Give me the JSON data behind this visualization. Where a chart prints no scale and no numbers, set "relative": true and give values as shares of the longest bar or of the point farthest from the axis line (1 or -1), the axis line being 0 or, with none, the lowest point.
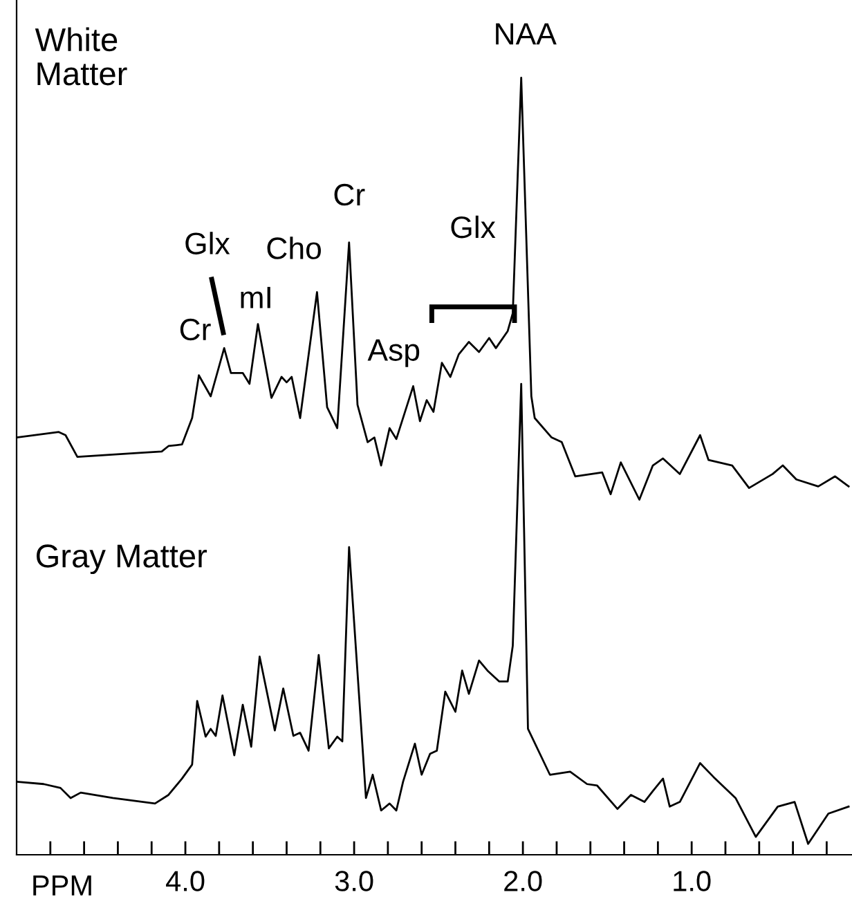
{
  "chart_data": {
    "type": "line",
    "relative": true,
    "xlabel": "PPM",
    "xlim": [
      5.0,
      0.05
    ],
    "xticks": [
      {
        "value": 4.8,
        "label": null
      },
      {
        "value": 4.6,
        "label": null
      },
      {
        "value": 4.4,
        "label": null
      },
      {
        "value": 4.2,
        "label": null
      },
      {
        "value": 4,
        "label": "4.0"
      },
      {
        "value": 3.8,
        "label": null
      },
      {
        "value": 3.6,
        "label": null
      },
      {
        "value": 3.4,
        "label": null
      },
      {
        "value": 3.2,
        "label": null
      },
      {
        "value": 3,
        "label": "3.0"
      },
      {
        "value": 2.8,
        "label": null
      },
      {
        "value": 2.6,
        "label": null
      },
      {
        "value": 2.4,
        "label": null
      },
      {
        "value": 2.2,
        "label": null
      },
      {
        "value": 2,
        "label": "2.0"
      },
      {
        "value": 1.8,
        "label": null
      },
      {
        "value": 1.6,
        "label": null
      },
      {
        "value": 1.4,
        "label": null
      },
      {
        "value": 1.2,
        "label": null
      },
      {
        "value": 1,
        "label": "1.0"
      },
      {
        "value": 0.8,
        "label": null
      },
      {
        "value": 0.6,
        "label": null
      },
      {
        "value": 0.4,
        "label": null
      },
      {
        "value": 0.2,
        "label": null
      }
    ],
    "tick_labels": "x",
    "grid": false,
    "marker": "none",
    "line_style": "solid",
    "series": [
      {
        "color": "#000000",
        "x": [
          5.0,
          4.75,
          4.71,
          4.64,
          4.29,
          4.14,
          4.1,
          4.02,
          3.96,
          3.92,
          3.85,
          3.77,
          3.73,
          3.66,
          3.62,
          3.57,
          3.49,
          3.43,
          3.4,
          3.37,
          3.32,
          3.22,
          3.16,
          3.1,
          3.03,
          2.98,
          2.92,
          2.88,
          2.84,
          2.79,
          2.75,
          2.65,
          2.61,
          2.57,
          2.53,
          2.48,
          2.43,
          2.38,
          2.32,
          2.26,
          2.2,
          2.16,
          2.09,
          2.06,
          2.01,
          1.95,
          1.93,
          1.83,
          1.77,
          1.69,
          1.53,
          1.48,
          1.42,
          1.31,
          1.23,
          1.17,
          1.07,
          0.95,
          0.9,
          0.76,
          0.66,
          0.52,
          0.46,
          0.38,
          0.25,
          0.15,
          0.07
        ],
        "values": [
          0.537,
          0.544,
          0.54,
          0.512,
          0.517,
          0.519,
          0.526,
          0.528,
          0.562,
          0.617,
          0.59,
          0.652,
          0.62,
          0.62,
          0.606,
          0.683,
          0.588,
          0.615,
          0.608,
          0.615,
          0.562,
          0.724,
          0.576,
          0.549,
          0.788,
          0.579,
          0.531,
          0.537,
          0.501,
          0.549,
          0.535,
          0.603,
          0.558,
          0.585,
          0.57,
          0.633,
          0.615,
          0.644,
          0.66,
          0.647,
          0.665,
          0.652,
          0.674,
          0.697,
          1,
          0.59,
          0.562,
          0.537,
          0.531,
          0.487,
          0.492,
          0.464,
          0.505,
          0.457,
          0.501,
          0.51,
          0.49,
          0.54,
          0.508,
          0.501,
          0.472,
          0.49,
          0.501,
          0.483,
          0.474,
          0.487,
          0.474
        ]
      },
      {
        "color": "#000000",
        "x": [
          5.0,
          4.84,
          4.74,
          4.68,
          4.62,
          4.43,
          4.18,
          4.1,
          4.02,
          3.96,
          3.93,
          3.88,
          3.85,
          3.82,
          3.78,
          3.71,
          3.66,
          3.61,
          3.56,
          3.47,
          3.42,
          3.36,
          3.32,
          3.27,
          3.21,
          3.15,
          3.1,
          3.07,
          3.03,
          2.93,
          2.89,
          2.84,
          2.79,
          2.75,
          2.71,
          2.64,
          2.6,
          2.55,
          2.51,
          2.46,
          2.4,
          2.36,
          2.32,
          2.26,
          2.21,
          2.14,
          2.09,
          2.06,
          2.01,
          1.97,
          1.84,
          1.72,
          1.62,
          1.56,
          1.44,
          1.36,
          1.28,
          1.23,
          1.17,
          1.13,
          1.07,
          0.95,
          0.87,
          0.74,
          0.62,
          0.49,
          0.39,
          0.31,
          0.19,
          0.07
        ],
        "values": [
          0.094,
          0.091,
          0.086,
          0.073,
          0.08,
          0.073,
          0.066,
          0.077,
          0.098,
          0.116,
          0.198,
          0.152,
          0.162,
          0.153,
          0.205,
          0.128,
          0.193,
          0.139,
          0.255,
          0.16,
          0.214,
          0.153,
          0.157,
          0.134,
          0.257,
          0.137,
          0.152,
          0.146,
          0.396,
          0.073,
          0.103,
          0.057,
          0.066,
          0.057,
          0.094,
          0.143,
          0.103,
          0.13,
          0.134,
          0.21,
          0.184,
          0.237,
          0.207,
          0.25,
          0.237,
          0.223,
          0.223,
          0.269,
          0.606,
          0.162,
          0.103,
          0.107,
          0.091,
          0.089,
          0.059,
          0.077,
          0.068,
          0.082,
          0.098,
          0.062,
          0.068,
          0.118,
          0.1,
          0.073,
          0.023,
          0.062,
          0.068,
          0.014,
          0.053,
          0.062
        ]
      }
    ],
    "annotations": [
      "White Matter",
      {
        "text": "Cr",
        "x": 3.92,
        "y": 0.617
      },
      "Glx",
      {
        "text": "mI",
        "x": 3.57,
        "y": 0.683
      },
      {
        "text": "Cho",
        "x": 3.22,
        "y": 0.724
      },
      {
        "text": "Cr",
        "x": 3.03,
        "y": 0.788
      },
      {
        "text": "Asp",
        "x": 2.65,
        "y": 0.603
      },
      "Glx",
      {
        "text": "NAA",
        "x": 2.01,
        "y": 1
      },
      "Gray Matter"
    ]
  }
}
